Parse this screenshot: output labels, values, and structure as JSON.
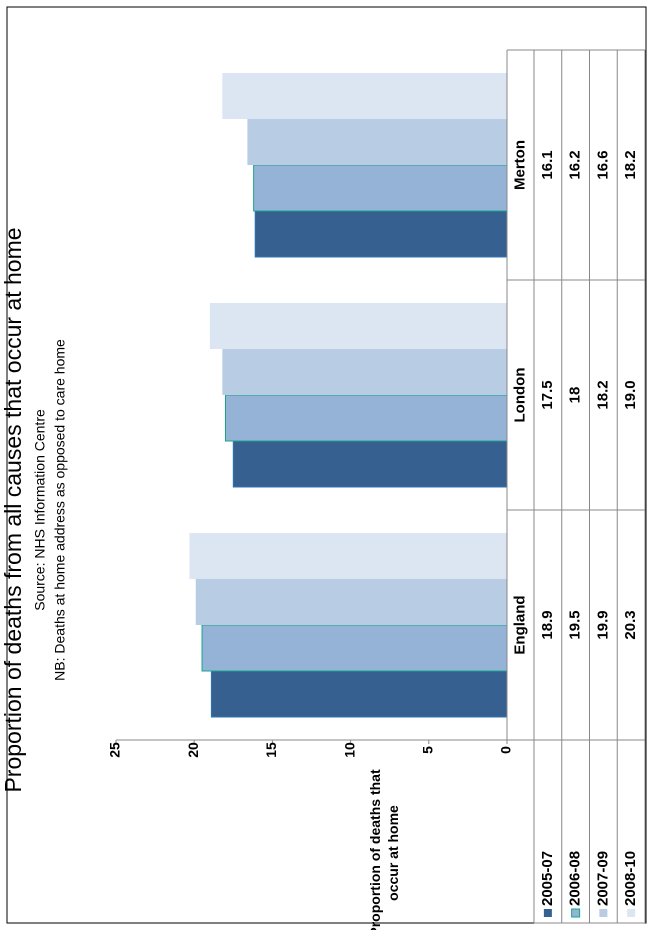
{
  "chart_data": {
    "type": "bar",
    "orientation": "rotated-90-counterclockwise",
    "title": "Proportion of deaths from all causes that occur at home",
    "subtitle": "Source: NHS Information Centre",
    "note": "NB: Deaths at home address as opposed to care home",
    "ylabel": "Proportion of deaths that occur at home",
    "xlabel": "",
    "ylim": [
      0,
      25
    ],
    "yticks": [
      "0",
      "5",
      "10",
      "15",
      "20",
      "25"
    ],
    "categories": [
      "England",
      "London",
      "Merton"
    ],
    "series": [
      {
        "name": "2005-07",
        "color": "#36608f",
        "values": [
          18.9,
          17.5,
          16.1
        ],
        "labels": [
          "18.9",
          "17.5",
          "16.1"
        ]
      },
      {
        "name": "2006-08",
        "color": "#95b3d7",
        "values": [
          19.5,
          18,
          16.2
        ],
        "labels": [
          "19.5",
          "18",
          "16.2"
        ]
      },
      {
        "name": "2007-09",
        "color": "#b8cce4",
        "values": [
          19.9,
          18.2,
          16.6
        ],
        "labels": [
          "19.9",
          "18.2",
          "16.6"
        ]
      },
      {
        "name": "2008-10",
        "color": "#dce6f2",
        "values": [
          20.3,
          19.0,
          18.2
        ],
        "labels": [
          "20.3",
          "19.0",
          "18.2"
        ]
      }
    ],
    "grid": false,
    "legend": "data-table"
  }
}
